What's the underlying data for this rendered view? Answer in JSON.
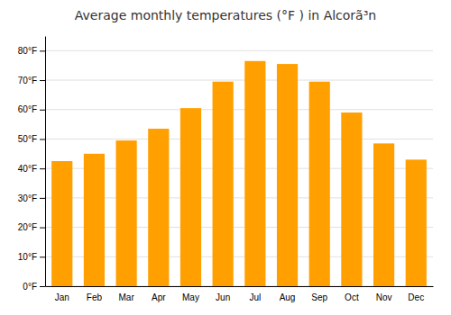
{
  "chart_data": {
    "type": "bar",
    "title": "Average monthly temperatures (°F ) in Alcorã³n",
    "categories": [
      "Jan",
      "Feb",
      "Mar",
      "Apr",
      "May",
      "Jun",
      "Jul",
      "Aug",
      "Sep",
      "Oct",
      "Nov",
      "Dec"
    ],
    "values": [
      42.5,
      45.0,
      49.5,
      53.5,
      60.5,
      69.5,
      76.5,
      75.5,
      69.5,
      59.0,
      48.5,
      43.0
    ],
    "color": "#FFA000",
    "ylim": [
      0,
      85
    ],
    "yticks": [
      {
        "value": 0,
        "label": "0°F"
      },
      {
        "value": 10,
        "label": "10°F"
      },
      {
        "value": 20,
        "label": "20°F"
      },
      {
        "value": 30,
        "label": "30°F"
      },
      {
        "value": 40,
        "label": "40°F"
      },
      {
        "value": 50,
        "label": "50°F"
      },
      {
        "value": 60,
        "label": "60°F"
      },
      {
        "value": 70,
        "label": "70°F"
      },
      {
        "value": 80,
        "label": "80°F"
      }
    ],
    "grid": true
  }
}
